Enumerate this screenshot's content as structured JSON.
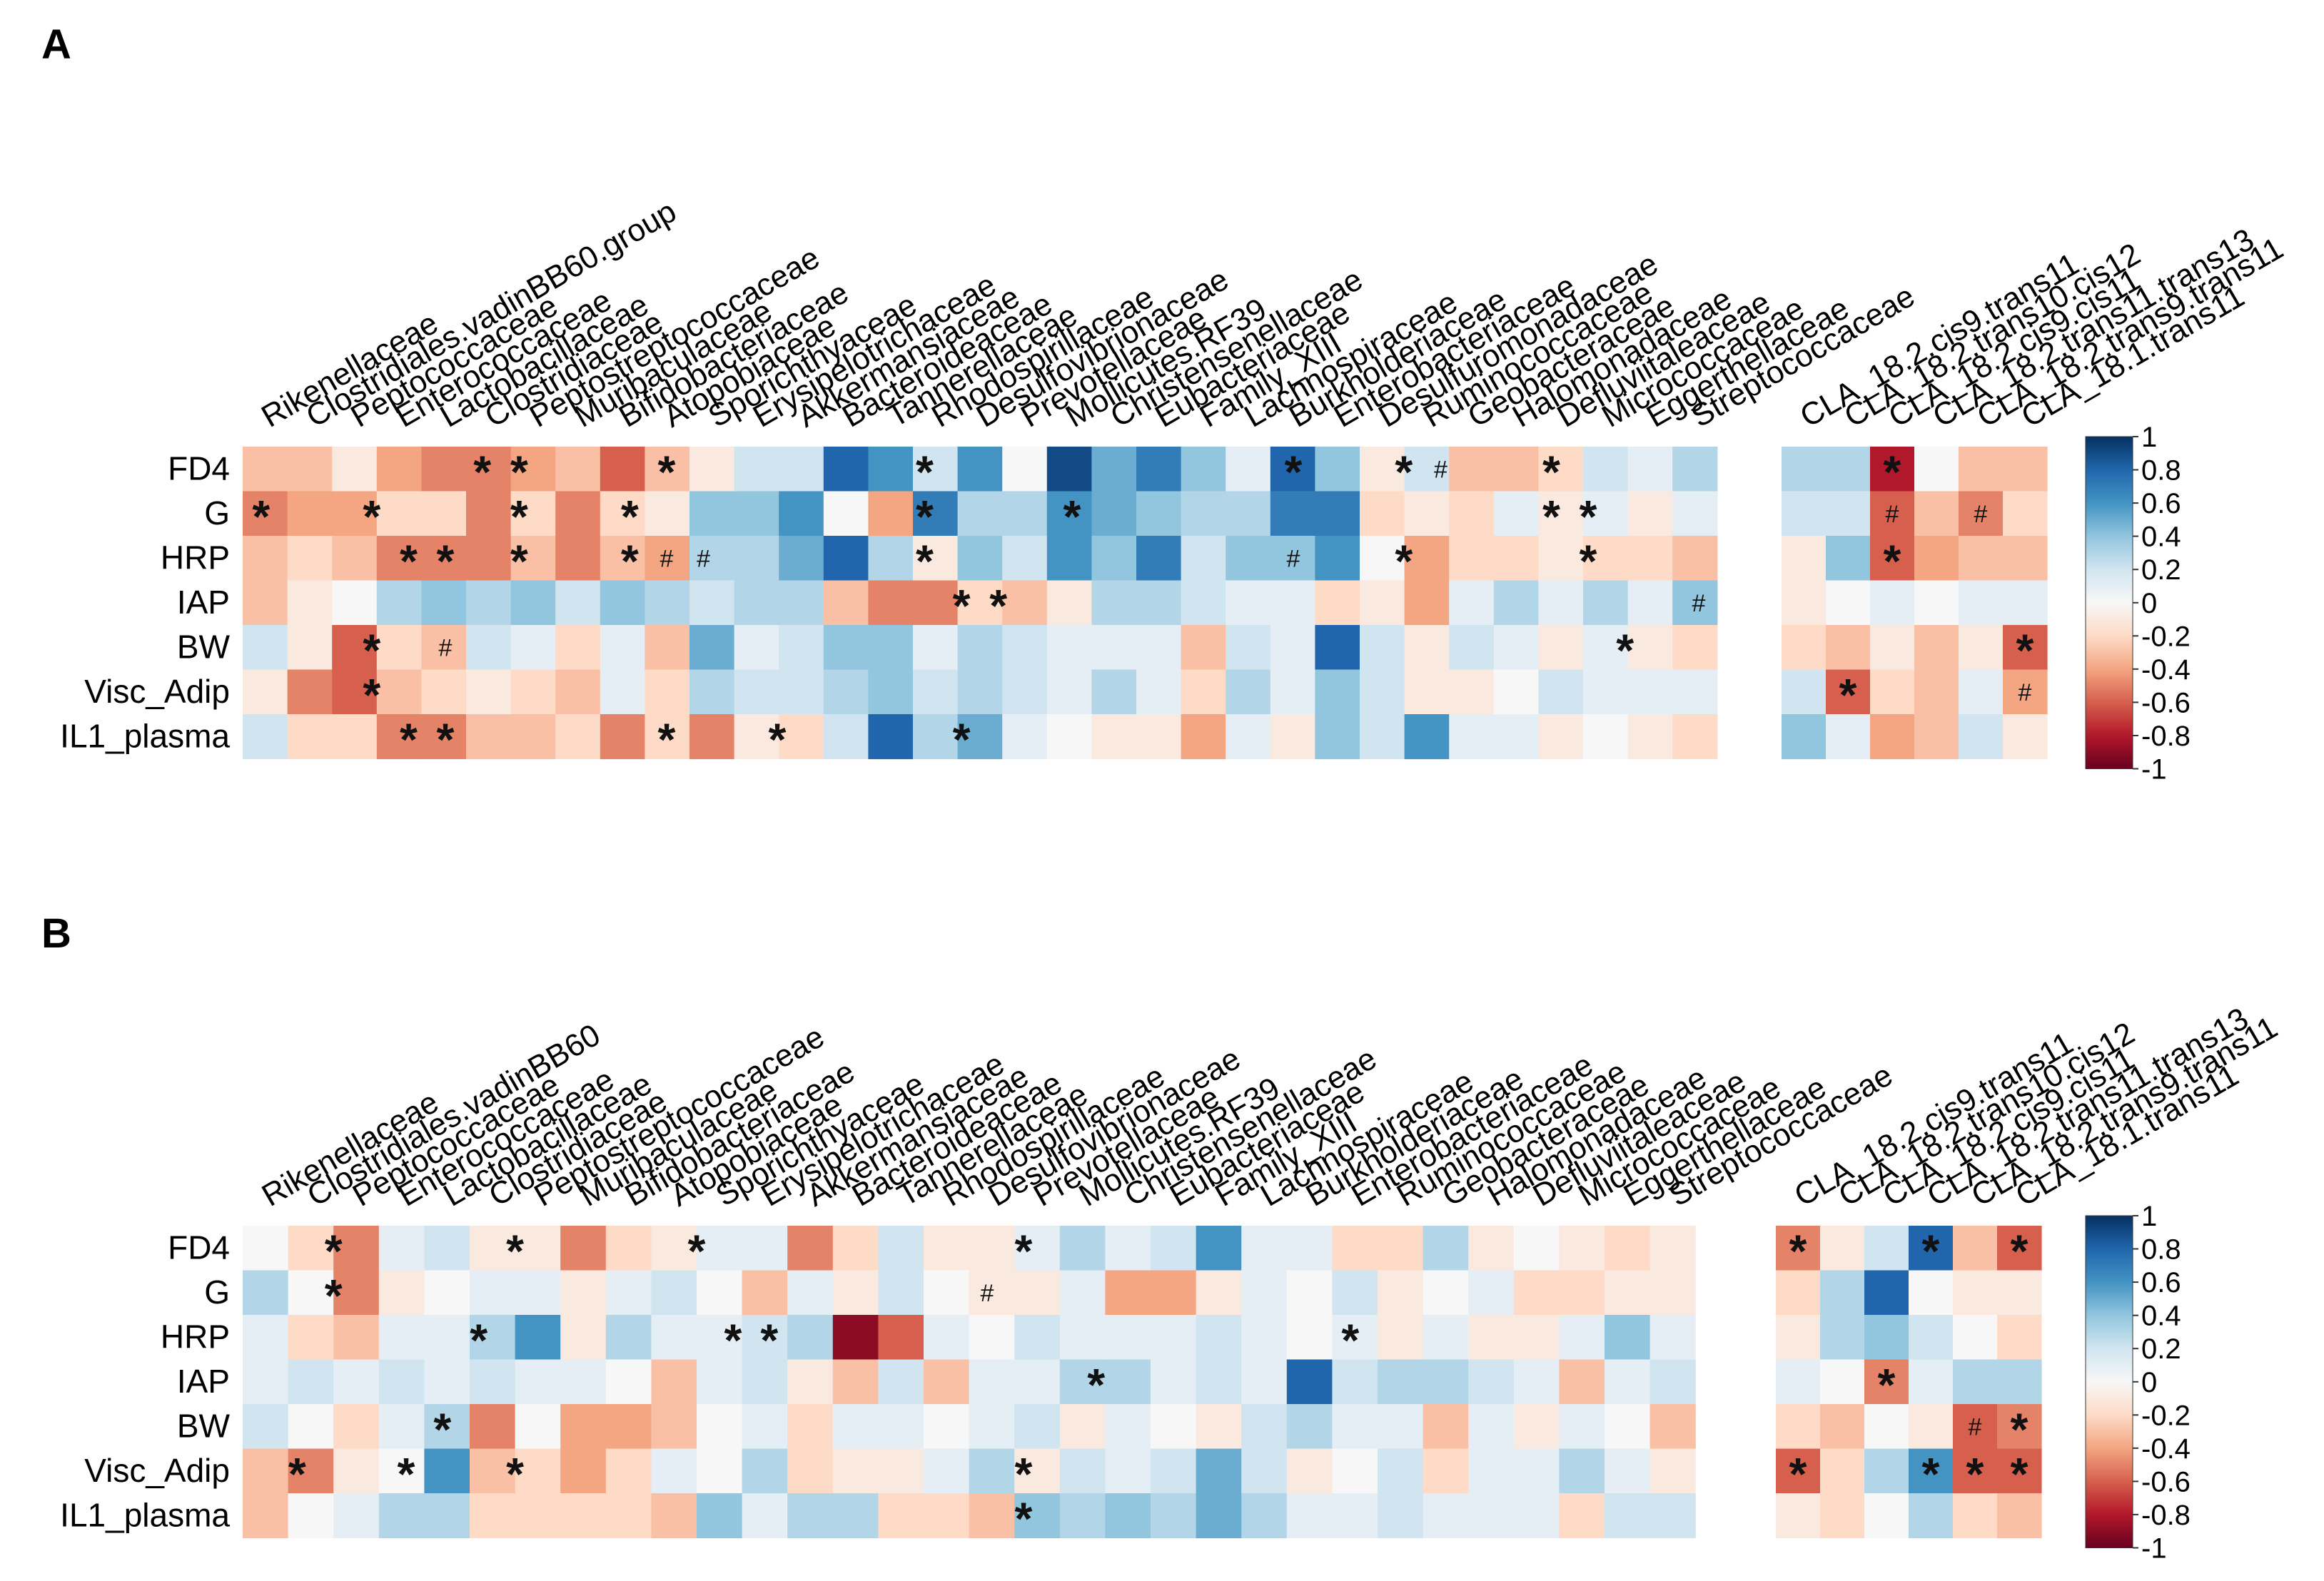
{
  "colors": {
    "scale": [
      "#67001f",
      "#b2182b",
      "#d6604d",
      "#f4a582",
      "#fddbc7",
      "#f7f7f7",
      "#d1e5f0",
      "#92c5de",
      "#4393c3",
      "#2166ac",
      "#053061"
    ]
  },
  "chart_data": [
    {
      "panel": "A",
      "type": "heatmap",
      "title": "",
      "value_range": [
        -1,
        1
      ],
      "legend_ticks": [
        "1",
        "0.8",
        "0.6",
        "0.4",
        "0.2",
        "0",
        "-0.2",
        "-0.4",
        "-0.6",
        "-0.8",
        "-1"
      ],
      "rows": [
        "FD4",
        "G",
        "HRP",
        "IAP",
        "BW",
        "Visc_Adip",
        "IL1_plasma"
      ],
      "bacteria": [
        "Rikenellaceae",
        "Clostridiales.vadinBB60.group",
        "Peptococcaceae",
        "Enterococcaceae",
        "Lactobacillaceae",
        "Clostridiaceae",
        "Peptostreptococcaceae",
        "Muribaculaceae",
        "Bifidobacteriaceae",
        "Atopobiaceae",
        "Sporichthyaceae",
        "Erysipelotrichaceae",
        "Akkermansiaceae",
        "Bacteroideaceae",
        "Tannerellaceae",
        "Rhodospirillaceae",
        "Desulfovibrionaceae",
        "Prevotellaceae",
        "Mollicutes.RF39",
        "Christensenellaceae",
        "Eubacteriaceae",
        "Family_XIII",
        "Lachnospiraceae",
        "Burkholderiaceae",
        "Enterobacteriaceae",
        "Desulfuromonadaceae",
        "Ruminococcaceae",
        "Geobacteraceae",
        "Halomonadaceae",
        "Defluviitaleaceae",
        "Micrococcaceae",
        "Eggerthellaceae",
        "Streptococcaceae"
      ],
      "cla": [
        "CLA_18.2.cis9.trans11",
        "CLA_18.2.trans10.cis12",
        "CLA_18.2.cis9.cis11",
        "CLA_18.2.trans11.trans13",
        "CLA_18.2.trans9.trans11",
        "CLA_18.1.trans11"
      ],
      "bacteria_values": [
        [
          -0.3,
          -0.3,
          -0.1,
          -0.4,
          -0.5,
          -0.5,
          -0.4,
          -0.3,
          -0.6,
          -0.3,
          -0.1,
          0.2,
          0.2,
          0.8,
          0.6,
          0.2,
          0.6,
          0.0,
          0.9,
          0.5,
          0.7,
          0.4,
          0.1,
          0.8,
          0.4,
          -0.1,
          0.2,
          -0.3,
          -0.3,
          -0.2,
          0.2,
          0.1,
          0.3
        ],
        [
          -0.5,
          -0.4,
          -0.4,
          -0.2,
          -0.2,
          -0.5,
          -0.2,
          -0.5,
          -0.2,
          -0.1,
          0.4,
          0.4,
          0.6,
          0.0,
          -0.4,
          0.7,
          0.3,
          0.3,
          0.6,
          0.5,
          0.4,
          0.3,
          0.3,
          0.7,
          0.7,
          -0.2,
          -0.1,
          -0.2,
          0.1,
          -0.1,
          0.1,
          -0.1,
          0.1
        ],
        [
          -0.3,
          -0.2,
          -0.3,
          -0.5,
          -0.5,
          -0.5,
          -0.3,
          -0.5,
          -0.3,
          -0.4,
          0.3,
          0.3,
          0.5,
          0.8,
          0.3,
          -0.1,
          0.4,
          0.2,
          0.6,
          0.4,
          0.7,
          0.2,
          0.4,
          0.4,
          0.6,
          0.0,
          -0.4,
          -0.2,
          -0.2,
          -0.1,
          -0.2,
          -0.2,
          -0.3
        ],
        [
          -0.3,
          -0.1,
          0.0,
          0.3,
          0.4,
          0.3,
          0.4,
          0.2,
          0.4,
          0.3,
          0.2,
          0.3,
          0.3,
          -0.3,
          -0.5,
          -0.5,
          -0.2,
          -0.3,
          -0.1,
          0.3,
          0.3,
          0.2,
          0.1,
          0.1,
          -0.2,
          -0.1,
          -0.4,
          0.1,
          0.3,
          0.1,
          0.3,
          0.1,
          0.4
        ],
        [
          0.2,
          -0.1,
          -0.6,
          -0.2,
          -0.3,
          0.2,
          0.1,
          -0.2,
          0.1,
          -0.3,
          0.5,
          0.1,
          0.2,
          0.4,
          0.4,
          0.1,
          0.3,
          0.2,
          0.1,
          0.1,
          0.1,
          -0.3,
          0.2,
          0.1,
          0.8,
          0.2,
          -0.1,
          0.2,
          0.1,
          -0.1,
          0.1,
          -0.1,
          -0.2
        ],
        [
          -0.1,
          -0.5,
          -0.6,
          -0.3,
          -0.2,
          -0.1,
          -0.2,
          -0.3,
          0.1,
          -0.2,
          0.3,
          0.2,
          0.2,
          0.3,
          0.4,
          0.2,
          0.3,
          0.2,
          0.1,
          0.3,
          0.1,
          -0.2,
          0.3,
          0.1,
          0.4,
          0.2,
          -0.1,
          -0.1,
          0.0,
          0.2,
          0.1,
          0.1,
          0.1
        ],
        [
          0.2,
          -0.2,
          -0.2,
          -0.5,
          -0.5,
          -0.3,
          -0.3,
          -0.2,
          -0.5,
          -0.2,
          -0.5,
          -0.1,
          -0.2,
          0.2,
          0.8,
          0.3,
          0.5,
          0.1,
          0.0,
          -0.1,
          -0.1,
          -0.4,
          0.1,
          -0.1,
          0.4,
          0.2,
          0.6,
          0.1,
          0.1,
          -0.1,
          0.0,
          -0.1,
          -0.2
        ]
      ],
      "cla_values": [
        [
          0.3,
          0.3,
          -0.8,
          0.0,
          -0.3,
          -0.3
        ],
        [
          0.2,
          0.2,
          -0.6,
          -0.3,
          -0.5,
          -0.2
        ],
        [
          -0.1,
          0.4,
          -0.6,
          -0.4,
          -0.3,
          -0.3
        ],
        [
          -0.1,
          0.0,
          0.1,
          0.0,
          0.1,
          0.1
        ],
        [
          -0.2,
          -0.3,
          -0.1,
          -0.3,
          -0.1,
          -0.6
        ],
        [
          0.2,
          -0.6,
          -0.2,
          -0.3,
          0.1,
          -0.4
        ],
        [
          0.4,
          0.1,
          -0.4,
          -0.3,
          0.2,
          -0.1
        ]
      ],
      "asterisks": [
        [
          0,
          6
        ],
        [
          0,
          7
        ],
        [
          0,
          11
        ],
        [
          0,
          18
        ],
        [
          0,
          28
        ],
        [
          0,
          31
        ],
        [
          0,
          35
        ],
        [
          1,
          0
        ],
        [
          1,
          3
        ],
        [
          1,
          7
        ],
        [
          1,
          10
        ],
        [
          1,
          18
        ],
        [
          1,
          22
        ],
        [
          1,
          35
        ],
        [
          1,
          36
        ],
        [
          2,
          4
        ],
        [
          2,
          5
        ],
        [
          2,
          7
        ],
        [
          2,
          10
        ],
        [
          2,
          18
        ],
        [
          2,
          31
        ],
        [
          2,
          36
        ],
        [
          3,
          19
        ],
        [
          3,
          20
        ],
        [
          4,
          3
        ],
        [
          4,
          37
        ],
        [
          5,
          3
        ],
        [
          6,
          4
        ],
        [
          6,
          5
        ],
        [
          6,
          11
        ],
        [
          6,
          14
        ],
        [
          6,
          19
        ]
      ],
      "hashes": [
        [
          0,
          32
        ],
        [
          2,
          11
        ],
        [
          2,
          12
        ],
        [
          2,
          28
        ],
        [
          3,
          39
        ],
        [
          4,
          5
        ]
      ],
      "cla_asterisks": [
        [
          0,
          2
        ],
        [
          2,
          2
        ],
        [
          4,
          5
        ],
        [
          5,
          1
        ]
      ],
      "cla_hashes": [
        [
          1,
          2
        ],
        [
          1,
          4
        ],
        [
          5,
          5
        ]
      ]
    },
    {
      "panel": "B",
      "type": "heatmap",
      "title": "",
      "value_range": [
        -1,
        1
      ],
      "legend_ticks": [
        "1",
        "0.8",
        "0.6",
        "0.4",
        "0.2",
        "0",
        "-0.2",
        "-0.4",
        "-0.6",
        "-0.8",
        "-1"
      ],
      "rows": [
        "FD4",
        "G",
        "HRP",
        "IAP",
        "BW",
        "Visc_Adip",
        "IL1_plasma"
      ],
      "bacteria": [
        "Rikenellaceae",
        "Clostridiales.vadinBB60",
        "Peptococcaceae",
        "Enterococcaceae",
        "Lactobacillaceae",
        "Clostridiaceae",
        "Peptostreptococcaceae",
        "Muribaculaceae",
        "Bifidobacteriaceae",
        "Atopobiaceae",
        "Sporichthyaceae",
        "Erysipelotrichaceae",
        "Akkermansiaceae",
        "Bacteroideaceae",
        "Tannerellaceae",
        "Rhodospirillaceae",
        "Desulfovibrionaceae",
        "Prevotellaceae",
        "Mollicutes.RF39",
        "Christensenellaceae",
        "Eubacteriaceae",
        "Family_XIII",
        "Lachnospiraceae",
        "Burkholderiaceae",
        "Enterobacteriaceae",
        "Ruminococcaceae",
        "Geobacteraceae",
        "Halomonadaceae",
        "Defluviitaleaceae",
        "Micrococcaceae",
        "Eggerthellaceae",
        "Streptococcaceae"
      ],
      "cla": [
        "CLA_18.2.cis9.trans11",
        "CLA_18.2.trans10.cis12",
        "CLA_18.2.cis9.cis11",
        "CLA_18.2.trans11.trans13",
        "CLA_18.2.trans9.trans11",
        "CLA_18.1.trans11"
      ],
      "bacteria_values": [
        [
          0.0,
          -0.2,
          -0.5,
          0.1,
          0.2,
          -0.1,
          -0.1,
          -0.5,
          -0.2,
          -0.1,
          0.1,
          0.1,
          -0.5,
          -0.2,
          0.2,
          -0.1,
          -0.1,
          0.1,
          0.3,
          0.1,
          0.2,
          0.6,
          0.1,
          0.1,
          -0.2,
          -0.2,
          0.3,
          -0.1,
          0.0,
          -0.1,
          -0.2,
          -0.1
        ],
        [
          0.3,
          0.0,
          -0.5,
          -0.1,
          0.0,
          0.1,
          0.1,
          -0.1,
          0.1,
          0.2,
          0.0,
          -0.3,
          0.1,
          -0.1,
          0.2,
          0.0,
          -0.1,
          -0.1,
          0.1,
          -0.4,
          -0.4,
          -0.1,
          0.1,
          0.0,
          0.2,
          -0.1,
          0.0,
          0.1,
          -0.2,
          -0.2,
          -0.1,
          -0.1
        ],
        [
          0.1,
          -0.2,
          -0.3,
          0.1,
          0.1,
          0.3,
          0.6,
          -0.1,
          0.3,
          0.1,
          0.1,
          0.2,
          0.3,
          -0.9,
          -0.6,
          0.1,
          0.0,
          0.2,
          0.1,
          0.1,
          0.1,
          0.2,
          0.1,
          0.0,
          0.1,
          -0.1,
          0.1,
          -0.1,
          -0.1,
          0.1,
          0.4,
          0.1
        ],
        [
          0.1,
          0.2,
          0.1,
          0.2,
          0.1,
          0.2,
          0.1,
          0.1,
          0.0,
          -0.3,
          0.1,
          0.2,
          -0.1,
          -0.3,
          0.2,
          -0.3,
          0.1,
          0.1,
          0.3,
          0.3,
          0.1,
          0.2,
          0.1,
          0.8,
          0.2,
          0.3,
          0.3,
          0.2,
          0.1,
          -0.3,
          0.1,
          0.2
        ],
        [
          0.2,
          0.0,
          -0.2,
          0.1,
          0.3,
          -0.5,
          0.0,
          -0.4,
          -0.4,
          -0.3,
          0.0,
          0.1,
          -0.2,
          0.1,
          0.1,
          0.0,
          0.1,
          0.2,
          -0.1,
          0.1,
          0.0,
          -0.1,
          0.2,
          0.3,
          0.1,
          0.1,
          -0.3,
          0.1,
          -0.1,
          0.1,
          0.0,
          -0.3
        ],
        [
          -0.3,
          -0.5,
          -0.1,
          0.0,
          0.6,
          -0.3,
          -0.2,
          -0.4,
          -0.2,
          0.1,
          0.0,
          0.3,
          -0.2,
          -0.1,
          -0.1,
          0.1,
          0.3,
          -0.1,
          0.2,
          0.1,
          0.2,
          0.5,
          0.2,
          -0.1,
          0.0,
          0.2,
          -0.2,
          0.1,
          0.1,
          0.3,
          0.1,
          -0.1
        ],
        [
          -0.3,
          0.0,
          0.1,
          0.3,
          0.3,
          -0.2,
          -0.2,
          -0.2,
          -0.2,
          -0.3,
          0.4,
          0.1,
          0.3,
          0.3,
          -0.2,
          -0.2,
          -0.3,
          0.4,
          0.3,
          0.4,
          0.3,
          0.5,
          0.3,
          0.1,
          0.1,
          0.2,
          0.1,
          0.1,
          0.1,
          -0.2,
          0.2,
          0.2
        ]
      ],
      "cla_values": [
        [
          -0.5,
          -0.1,
          0.2,
          0.8,
          -0.3,
          -0.6
        ],
        [
          -0.2,
          0.3,
          0.8,
          0.0,
          -0.1,
          -0.1
        ],
        [
          -0.1,
          0.3,
          0.4,
          0.2,
          0.0,
          -0.2
        ],
        [
          0.1,
          0.0,
          -0.5,
          0.1,
          0.3,
          0.3
        ],
        [
          -0.2,
          -0.3,
          0.0,
          -0.1,
          -0.6,
          -0.5
        ],
        [
          -0.6,
          -0.2,
          0.3,
          0.6,
          -0.6,
          -0.6
        ],
        [
          -0.1,
          -0.2,
          0.0,
          0.3,
          -0.2,
          -0.3
        ]
      ],
      "asterisks": [
        [
          0,
          2
        ],
        [
          0,
          7
        ],
        [
          0,
          12
        ],
        [
          0,
          21
        ],
        [
          1,
          2
        ],
        [
          2,
          6
        ],
        [
          2,
          13
        ],
        [
          2,
          14
        ],
        [
          2,
          30
        ],
        [
          3,
          23
        ],
        [
          4,
          5
        ],
        [
          5,
          1
        ],
        [
          5,
          4
        ],
        [
          5,
          7
        ],
        [
          5,
          21
        ],
        [
          6,
          21
        ]
      ],
      "hashes": [
        [
          1,
          20
        ]
      ],
      "cla_asterisks": [
        [
          0,
          0
        ],
        [
          0,
          3
        ],
        [
          0,
          5
        ],
        [
          3,
          2
        ],
        [
          4,
          5
        ],
        [
          5,
          0
        ],
        [
          5,
          3
        ],
        [
          5,
          4
        ],
        [
          5,
          5
        ]
      ],
      "cla_hashes": [
        [
          4,
          4
        ]
      ]
    }
  ]
}
